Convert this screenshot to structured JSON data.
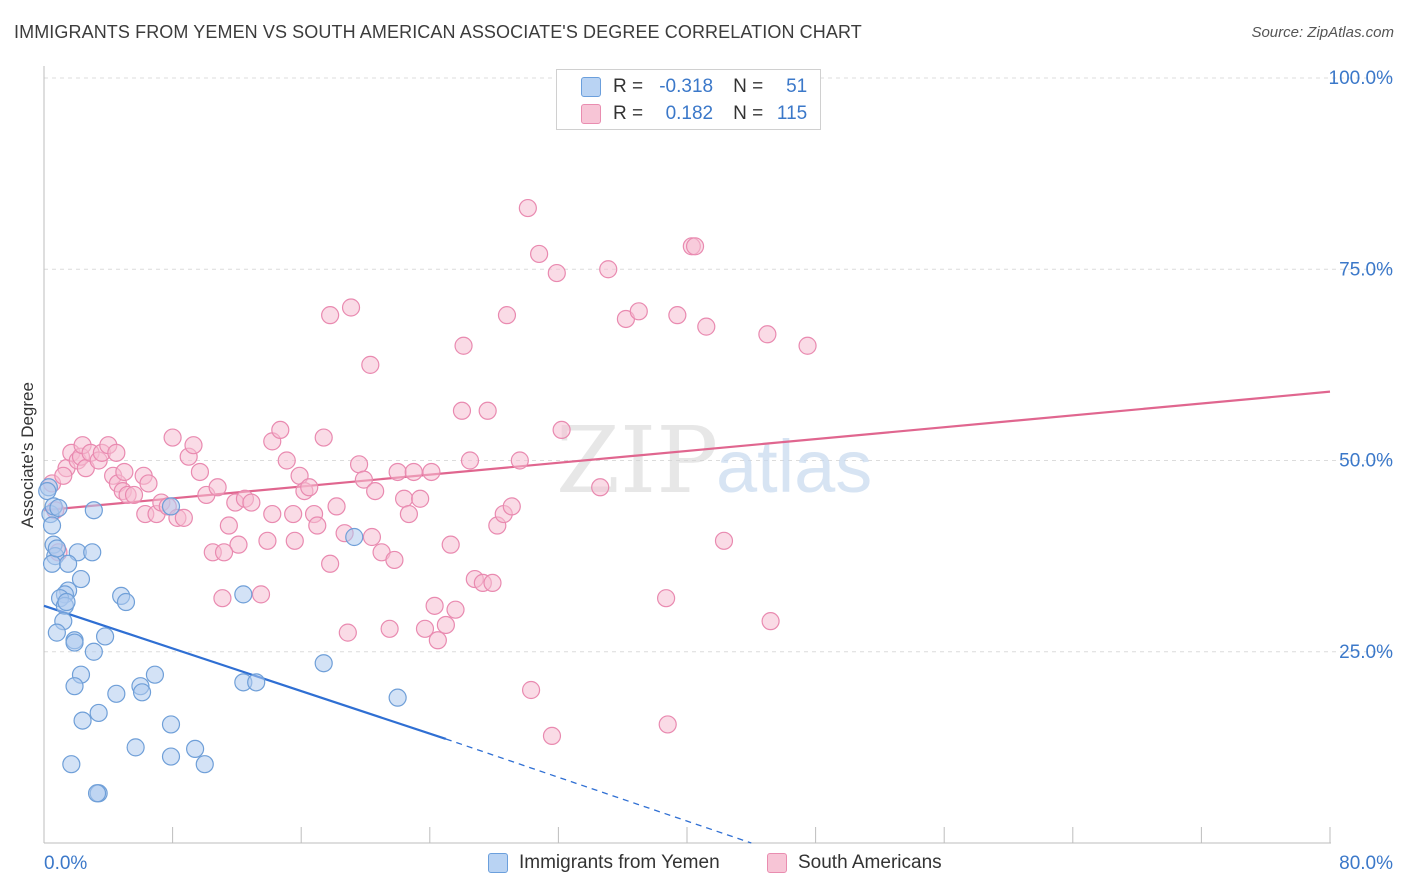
{
  "header": {
    "title": "IMMIGRANTS FROM YEMEN VS SOUTH AMERICAN ASSOCIATE'S DEGREE CORRELATION CHART",
    "source": "Source: ZipAtlas.com"
  },
  "watermark": {
    "zip": "ZIP",
    "atlas": "atlas"
  },
  "legend": {
    "r_label": "R =",
    "n_label": "N =",
    "rows": [
      {
        "r": "-0.318",
        "n": "51",
        "fill": "#b9d3f3",
        "stroke": "#6b9fdc"
      },
      {
        "r": "0.182",
        "n": "115",
        "fill": "#f7c5d6",
        "stroke": "#e98db0"
      }
    ]
  },
  "colors": {
    "blue_fill": "#aecbef",
    "blue_stroke": "#6f9fd8",
    "blue_line": "#2f6fd3",
    "pink_fill": "#f6bed1",
    "pink_stroke": "#e98ab0",
    "pink_line": "#e0668f",
    "axis_label": "#3b78c9",
    "grid": "#dcdcdc"
  },
  "chart_data": {
    "type": "scatter",
    "title": "IMMIGRANTS FROM YEMEN VS SOUTH AMERICAN ASSOCIATE'S DEGREE CORRELATION CHART",
    "xlabel": "",
    "ylabel": "Associate's Degree",
    "xlim": [
      0,
      80
    ],
    "ylim": [
      0,
      100
    ],
    "x_tick_labels": [
      "0.0%",
      "80.0%"
    ],
    "y_tick_labels": [
      "25.0%",
      "50.0%",
      "75.0%",
      "100.0%"
    ],
    "y_ticks": [
      25,
      50,
      75,
      100
    ],
    "grid": true,
    "legend_position": "top-center",
    "series": [
      {
        "name": "Immigrants from Yemen",
        "r": -0.318,
        "n": 51,
        "trend": {
          "x1": 0,
          "y1": 31.0,
          "x2": 25,
          "y2": 13.6,
          "dash_to_x": 44,
          "dash_to_y": 0
        },
        "points": [
          [
            0.3,
            46.5
          ],
          [
            0.2,
            46
          ],
          [
            0.4,
            43
          ],
          [
            0.5,
            41.5
          ],
          [
            0.6,
            39
          ],
          [
            0.7,
            37.5
          ],
          [
            0.5,
            36.5
          ],
          [
            0.8,
            38.5
          ],
          [
            0.6,
            44
          ],
          [
            3.1,
            43.5
          ],
          [
            2.1,
            38
          ],
          [
            3.0,
            38
          ],
          [
            1.5,
            36.5
          ],
          [
            2.3,
            34.5
          ],
          [
            1.5,
            33
          ],
          [
            1.3,
            32.5
          ],
          [
            1.0,
            32
          ],
          [
            1.3,
            31
          ],
          [
            1.4,
            31.5
          ],
          [
            4.8,
            32.3
          ],
          [
            5.1,
            31.5
          ],
          [
            1.2,
            29
          ],
          [
            0.8,
            27.5
          ],
          [
            1.9,
            26.5
          ],
          [
            1.9,
            26.2
          ],
          [
            3.8,
            27
          ],
          [
            3.1,
            25
          ],
          [
            2.3,
            22
          ],
          [
            1.9,
            20.5
          ],
          [
            4.5,
            19.5
          ],
          [
            6.0,
            20.5
          ],
          [
            6.1,
            19.7
          ],
          [
            6.9,
            22
          ],
          [
            12.4,
            32.5
          ],
          [
            12.4,
            21
          ],
          [
            13.2,
            21
          ],
          [
            17.4,
            23.5
          ],
          [
            22.0,
            19
          ],
          [
            19.3,
            40
          ],
          [
            7.9,
            44
          ],
          [
            2.4,
            16
          ],
          [
            3.4,
            17
          ],
          [
            7.9,
            15.5
          ],
          [
            5.7,
            12.5
          ],
          [
            7.9,
            11.3
          ],
          [
            9.4,
            12.3
          ],
          [
            10.0,
            10.3
          ],
          [
            1.7,
            10.3
          ],
          [
            3.4,
            6.5
          ],
          [
            3.3,
            6.5
          ],
          [
            0.9,
            43.8
          ]
        ]
      },
      {
        "name": "South Americans",
        "r": 0.182,
        "n": 115,
        "trend": {
          "x1": 0,
          "y1": 43.5,
          "x2": 80,
          "y2": 59
        },
        "points": [
          [
            0.5,
            47
          ],
          [
            0.7,
            43.5
          ],
          [
            1.4,
            49
          ],
          [
            1.7,
            51
          ],
          [
            2.1,
            50
          ],
          [
            2.3,
            50.5
          ],
          [
            2.4,
            52
          ],
          [
            2.6,
            49
          ],
          [
            2.9,
            51
          ],
          [
            3.4,
            50
          ],
          [
            3.6,
            51
          ],
          [
            4.0,
            52
          ],
          [
            4.3,
            48
          ],
          [
            4.5,
            51
          ],
          [
            4.6,
            47
          ],
          [
            4.9,
            46
          ],
          [
            5.2,
            45.5
          ],
          [
            5.6,
            45.5
          ],
          [
            6.2,
            48
          ],
          [
            6.3,
            43
          ],
          [
            6.5,
            47
          ],
          [
            7.0,
            43
          ],
          [
            7.3,
            44.5
          ],
          [
            7.7,
            44
          ],
          [
            8.0,
            53
          ],
          [
            8.3,
            42.5
          ],
          [
            8.7,
            42.5
          ],
          [
            9.0,
            50.5
          ],
          [
            9.3,
            52
          ],
          [
            9.7,
            48.5
          ],
          [
            10.1,
            45.5
          ],
          [
            10.5,
            38
          ],
          [
            10.8,
            46.5
          ],
          [
            11.1,
            32
          ],
          [
            11.5,
            41.5
          ],
          [
            11.9,
            44.5
          ],
          [
            12.1,
            39
          ],
          [
            12.5,
            45
          ],
          [
            12.9,
            44.5
          ],
          [
            13.5,
            32.5
          ],
          [
            13.9,
            39.5
          ],
          [
            14.2,
            43
          ],
          [
            14.2,
            52.5
          ],
          [
            14.7,
            54
          ],
          [
            15.1,
            50
          ],
          [
            15.5,
            43
          ],
          [
            15.6,
            39.5
          ],
          [
            15.9,
            48
          ],
          [
            16.2,
            46
          ],
          [
            16.5,
            46.5
          ],
          [
            16.8,
            43
          ],
          [
            17.0,
            41.5
          ],
          [
            17.4,
            53
          ],
          [
            17.8,
            36.5
          ],
          [
            18.2,
            44
          ],
          [
            18.7,
            40.5
          ],
          [
            18.9,
            27.5
          ],
          [
            19.6,
            49.5
          ],
          [
            19.9,
            47.5
          ],
          [
            20.3,
            62.5
          ],
          [
            20.4,
            40
          ],
          [
            20.6,
            46
          ],
          [
            21.0,
            38
          ],
          [
            21.5,
            28
          ],
          [
            21.8,
            37
          ],
          [
            22.0,
            48.5
          ],
          [
            22.4,
            45
          ],
          [
            22.7,
            43
          ],
          [
            23.0,
            48.5
          ],
          [
            23.4,
            45
          ],
          [
            23.7,
            28
          ],
          [
            24.1,
            48.5
          ],
          [
            24.3,
            31
          ],
          [
            24.5,
            26.5
          ],
          [
            25.0,
            28.5
          ],
          [
            25.3,
            39
          ],
          [
            25.6,
            30.5
          ],
          [
            26.0,
            56.5
          ],
          [
            26.1,
            65
          ],
          [
            26.5,
            50
          ],
          [
            26.8,
            34.5
          ],
          [
            27.3,
            34
          ],
          [
            27.6,
            56.5
          ],
          [
            27.9,
            34
          ],
          [
            28.2,
            41.5
          ],
          [
            28.6,
            43
          ],
          [
            28.8,
            69
          ],
          [
            29.1,
            44
          ],
          [
            29.6,
            50
          ],
          [
            30.1,
            83
          ],
          [
            30.3,
            20
          ],
          [
            30.8,
            77
          ],
          [
            31.6,
            14
          ],
          [
            31.9,
            74.5
          ],
          [
            32.2,
            54
          ],
          [
            34.6,
            46.5
          ],
          [
            35.1,
            75
          ],
          [
            36.2,
            68.5
          ],
          [
            37.0,
            69.5
          ],
          [
            38.7,
            32
          ],
          [
            38.8,
            15.5
          ],
          [
            39.4,
            69
          ],
          [
            40.3,
            78
          ],
          [
            40.5,
            78
          ],
          [
            41.2,
            67.5
          ],
          [
            42.3,
            39.5
          ],
          [
            45.0,
            66.5
          ],
          [
            45.2,
            29
          ],
          [
            47.5,
            65
          ],
          [
            17.8,
            69
          ],
          [
            19.1,
            70
          ],
          [
            5.0,
            48.5
          ],
          [
            1.2,
            48
          ],
          [
            11.2,
            38
          ],
          [
            0.9,
            38
          ]
        ]
      }
    ]
  }
}
